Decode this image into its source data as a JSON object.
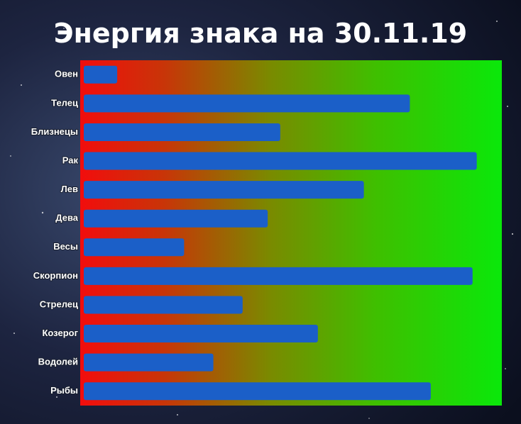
{
  "chart_data": {
    "type": "bar",
    "title": "Энергия знака на 30.11.19",
    "categories": [
      "Овен",
      "Телец",
      "Близнецы",
      "Рак",
      "Лев",
      "Дева",
      "Весы",
      "Скорпион",
      "Стрелец",
      "Козерог",
      "Водолей",
      "Рыбы"
    ],
    "values": [
      8,
      78,
      47,
      94,
      67,
      44,
      24,
      93,
      38,
      56,
      31,
      83
    ],
    "color": "#1b5fc8",
    "xlim": [
      0,
      100
    ]
  }
}
